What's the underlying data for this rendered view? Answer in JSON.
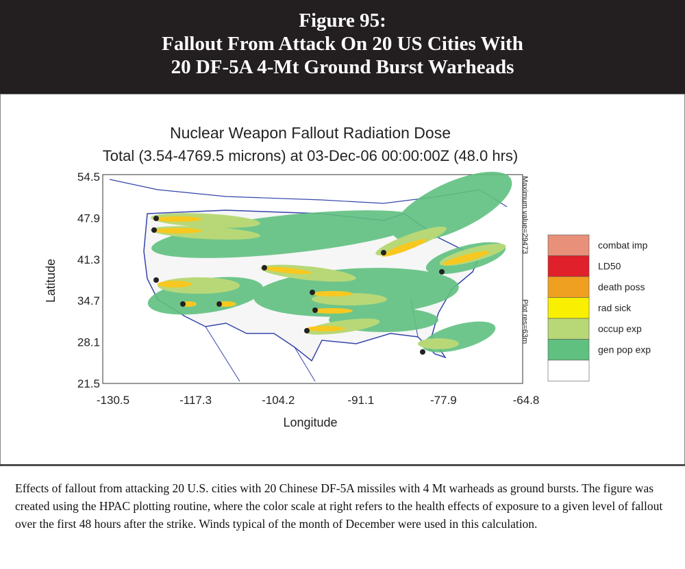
{
  "header": {
    "title_lines": [
      "Figure 95:",
      "Fallout From Attack On 20 US Cities With",
      "20 DF-5A 4-Mt Ground Burst Warheads"
    ]
  },
  "figure": {
    "title": "Nuclear Weapon Fallout Radiation Dose",
    "subtitle": "Total (3.54-4769.5 microns) at 03-Dec-06 00:00:00Z (48.0 hrs)",
    "y_axis": {
      "label": "Latitude",
      "ticks": [
        54.5,
        47.9,
        41.3,
        34.7,
        28.1,
        21.5
      ]
    },
    "x_axis": {
      "label": "Longitude",
      "ticks": [
        -130.5,
        -117.3,
        -104.2,
        -91.1,
        -77.9,
        -64.8
      ]
    },
    "side_notes": [
      "Maximum value=29473",
      "Plot res=63m"
    ],
    "legend": {
      "items": [
        {
          "label": "combat imp",
          "color": "#e8907a"
        },
        {
          "label": "LD50",
          "color": "#e0202a"
        },
        {
          "label": "death poss",
          "color": "#f0a020"
        },
        {
          "label": "rad sick",
          "color": "#f8f000"
        },
        {
          "label": "occup exp",
          "color": "#b8d878"
        },
        {
          "label": "gen pop exp",
          "color": "#60c080"
        },
        {
          "label": "",
          "color": "#ffffff"
        }
      ]
    }
  },
  "caption": "Effects of fallout from attacking 20 U.S. cities with 20 Chinese DF-5A missiles with 4 Mt warheads as ground bursts. The figure was created using the HPAC plotting routine, where the color scale at right refers to the health effects of exposure to a given level of fallout over the first 48 hours after the strike. Winds typical of the month of December were used in this calculation."
}
